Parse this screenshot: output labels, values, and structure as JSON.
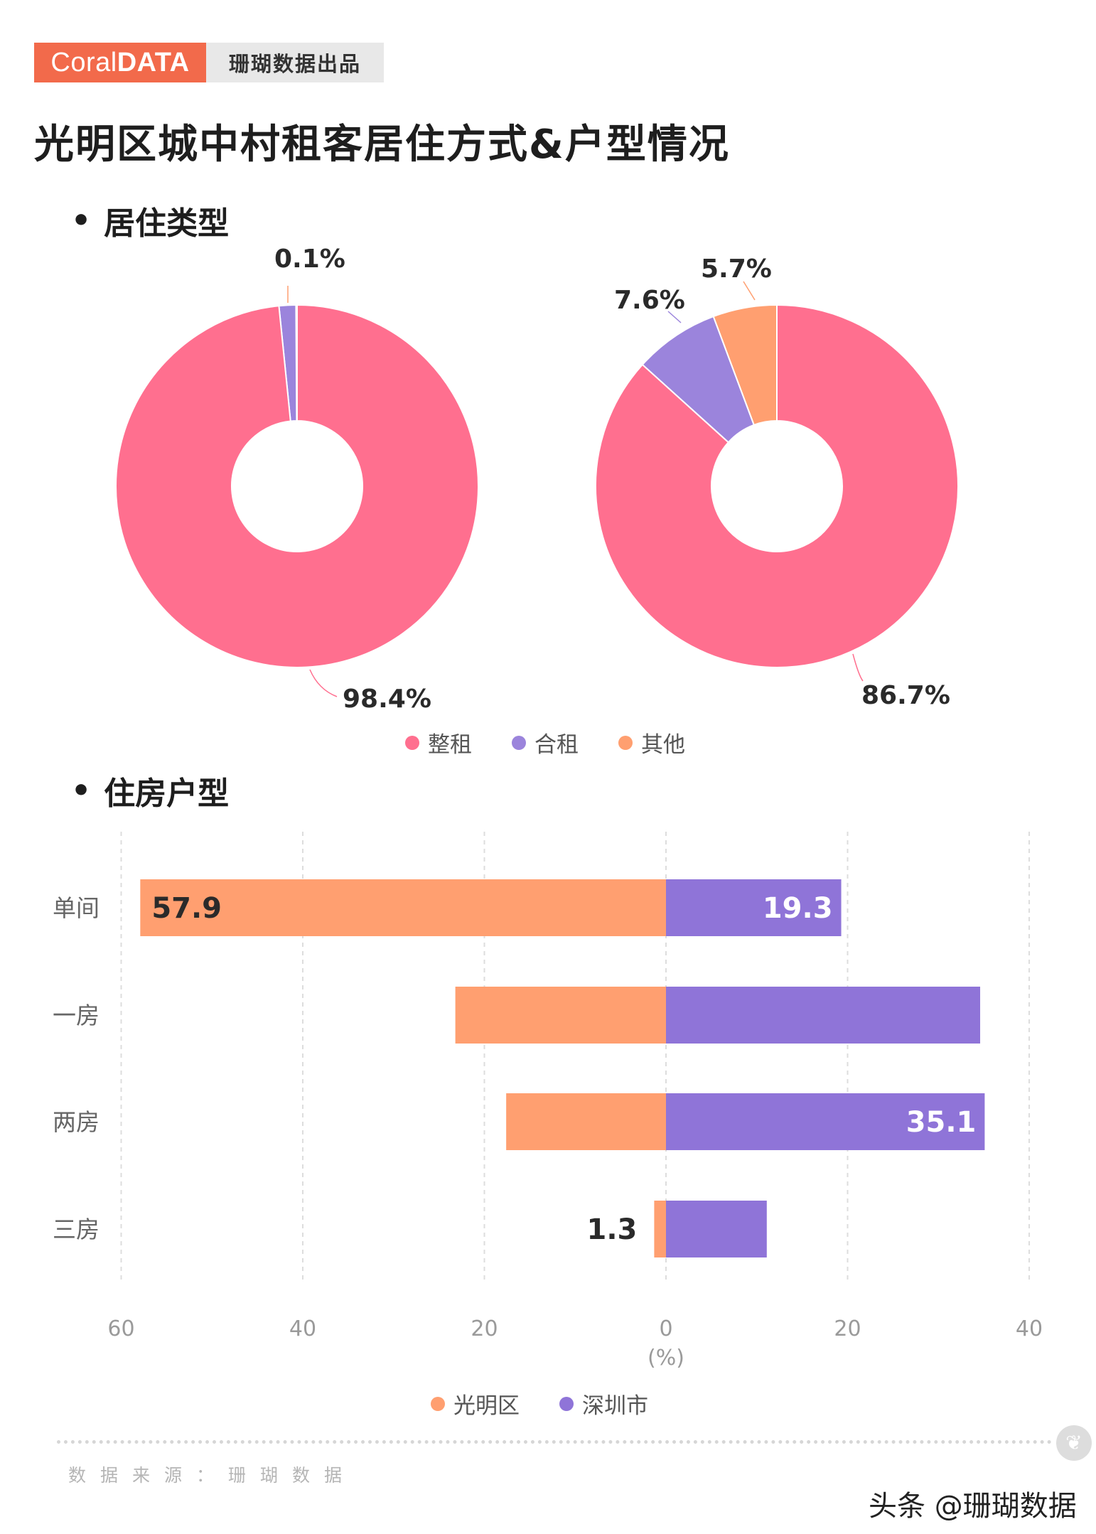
{
  "brand": {
    "logo_thin": "Coral",
    "logo_bold": "DATA",
    "subtitle": "珊瑚数据出品"
  },
  "page_title": "光明区城中村租客居住方式&户型情况",
  "sections": {
    "living_type": "居住类型",
    "housing_type": "住房户型"
  },
  "colors": {
    "whole": "#ff6f8f",
    "shared": "#9b84dc",
    "other": "#ff9f70",
    "guangming": "#ff9f70",
    "shenzhen": "#8f74d8",
    "brand": "#f26a4b"
  },
  "chart_data": [
    {
      "type": "pie",
      "variant": "donut",
      "slices": [
        {
          "name": "整租",
          "value": 98.4,
          "label": "98.4%"
        },
        {
          "name": "合租",
          "value": 1.5,
          "label": ""
        },
        {
          "name": "其他",
          "value": 0.1,
          "label": "0.1%"
        }
      ]
    },
    {
      "type": "pie",
      "variant": "donut",
      "slices": [
        {
          "name": "整租",
          "value": 86.7,
          "label": "86.7%"
        },
        {
          "name": "合租",
          "value": 7.6,
          "label": "7.6%"
        },
        {
          "name": "其他",
          "value": 5.7,
          "label": "5.7%"
        }
      ]
    },
    {
      "type": "bar",
      "orientation": "horizontal-diverging",
      "categories": [
        "单间",
        "一房",
        "两房",
        "三房"
      ],
      "series": [
        {
          "name": "光明区",
          "values": [
            57.9,
            23.2,
            17.6,
            1.3
          ],
          "labels": [
            "57.9",
            "",
            "",
            "1.3"
          ]
        },
        {
          "name": "深圳市",
          "values": [
            19.3,
            34.6,
            35.1,
            11.1
          ],
          "labels": [
            "19.3",
            "",
            "35.1",
            ""
          ]
        }
      ],
      "xlim": [
        -60,
        40
      ],
      "xticks": [
        "60",
        "40",
        "20",
        "0",
        "20",
        "40"
      ],
      "xlabel": "(%)",
      "grid": true
    }
  ],
  "pie_legend": [
    "整租",
    "合租",
    "其他"
  ],
  "bar_legend": [
    "光明区",
    "深圳市"
  ],
  "footer": {
    "source": "数据来源：珊瑚数据",
    "corner_mark": "头条 @珊瑚数据"
  }
}
